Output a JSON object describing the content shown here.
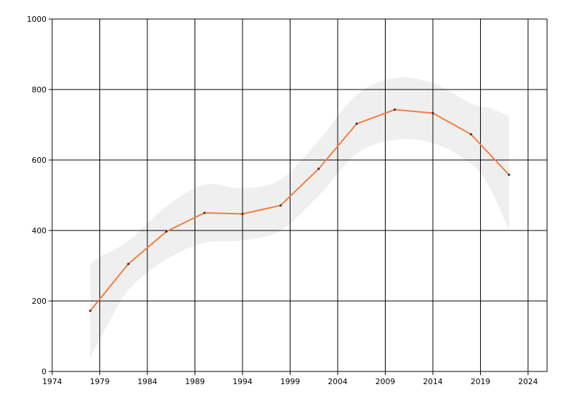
{
  "chart_data": {
    "type": "line",
    "title": "",
    "xlabel": "",
    "ylabel": "",
    "xlim": [
      1974,
      2026
    ],
    "ylim": [
      0,
      1000
    ],
    "x_ticks": [
      "1974",
      "1979",
      "1984",
      "1989",
      "1994",
      "1999",
      "2004",
      "2009",
      "2014",
      "2019",
      "2024"
    ],
    "y_ticks": [
      "0",
      "200",
      "400",
      "600",
      "800",
      "1000"
    ],
    "grid": true,
    "series": [
      {
        "color": "#f47c3c",
        "x": [
          1978,
          1982,
          1986,
          1990,
          1994,
          1998,
          2002,
          2006,
          2010,
          2014,
          2018,
          2022
        ],
        "y": [
          172,
          305,
          397,
          450,
          447,
          471,
          575,
          703,
          743,
          733,
          673,
          558
        ]
      }
    ],
    "band": {
      "color": "#efefef",
      "x": [
        1978,
        1979,
        1982,
        1986,
        1990,
        1994,
        1998,
        2002,
        2006,
        2010,
        2014,
        2018,
        2020,
        2022
      ],
      "upper": [
        303,
        325,
        370,
        468,
        530,
        520,
        545,
        655,
        785,
        833,
        818,
        760,
        747,
        725
      ],
      "lower": [
        40,
        90,
        230,
        318,
        365,
        372,
        400,
        498,
        618,
        657,
        648,
        590,
        520,
        400
      ]
    }
  }
}
